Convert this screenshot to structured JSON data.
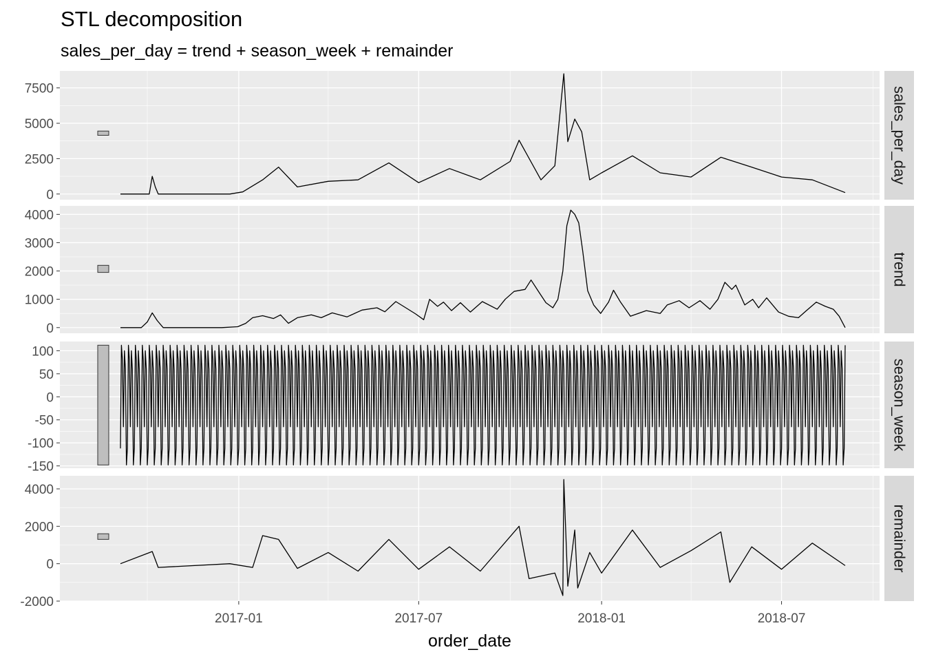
{
  "chart_data": {
    "type": "line",
    "title": "STL decomposition",
    "subtitle": "sales_per_day = trend + season_week + remainder",
    "xlabel": "order_date",
    "x_ticks": [
      "2017-01",
      "2017-07",
      "2018-01",
      "2018-07"
    ],
    "x_range": [
      "2016-09-04",
      "2018-09-03"
    ],
    "panels": [
      {
        "name": "sales_per_day",
        "ylim": [
          -400,
          8700
        ],
        "yticks": [
          0,
          2500,
          5000,
          7500
        ],
        "ytick_labels": [
          "0",
          "2500",
          "5000",
          "7500"
        ],
        "scale_bar": [
          4150,
          4450
        ],
        "series": [
          {
            "x": "2016-09-04",
            "y": 0
          },
          {
            "x": "2016-10-03",
            "y": 0
          },
          {
            "x": "2016-10-06",
            "y": 1250
          },
          {
            "x": "2016-10-09",
            "y": 500
          },
          {
            "x": "2016-10-12",
            "y": 0
          },
          {
            "x": "2016-12-23",
            "y": 0
          },
          {
            "x": "2017-01-05",
            "y": 150
          },
          {
            "x": "2017-01-25",
            "y": 1000
          },
          {
            "x": "2017-02-10",
            "y": 1900
          },
          {
            "x": "2017-03-01",
            "y": 500
          },
          {
            "x": "2017-04-01",
            "y": 900
          },
          {
            "x": "2017-05-01",
            "y": 1000
          },
          {
            "x": "2017-06-01",
            "y": 2200
          },
          {
            "x": "2017-07-01",
            "y": 800
          },
          {
            "x": "2017-08-01",
            "y": 1800
          },
          {
            "x": "2017-09-01",
            "y": 1000
          },
          {
            "x": "2017-10-01",
            "y": 2300
          },
          {
            "x": "2017-10-10",
            "y": 3800
          },
          {
            "x": "2017-11-01",
            "y": 1000
          },
          {
            "x": "2017-11-15",
            "y": 2000
          },
          {
            "x": "2017-11-24",
            "y": 8500
          },
          {
            "x": "2017-11-28",
            "y": 3700
          },
          {
            "x": "2017-12-05",
            "y": 5300
          },
          {
            "x": "2017-12-12",
            "y": 4400
          },
          {
            "x": "2017-12-20",
            "y": 1000
          },
          {
            "x": "2018-01-01",
            "y": 1500
          },
          {
            "x": "2018-02-01",
            "y": 2700
          },
          {
            "x": "2018-03-01",
            "y": 1500
          },
          {
            "x": "2018-04-01",
            "y": 1200
          },
          {
            "x": "2018-05-01",
            "y": 2600
          },
          {
            "x": "2018-06-01",
            "y": 1900
          },
          {
            "x": "2018-07-01",
            "y": 1200
          },
          {
            "x": "2018-08-01",
            "y": 1000
          },
          {
            "x": "2018-09-03",
            "y": 100
          }
        ]
      },
      {
        "name": "trend",
        "ylim": [
          -200,
          4300
        ],
        "yticks": [
          0,
          1000,
          2000,
          3000,
          4000
        ],
        "ytick_labels": [
          "0",
          "1000",
          "2000",
          "3000",
          "4000"
        ],
        "scale_bar": [
          1950,
          2200
        ],
        "series": [
          {
            "x": "2016-09-04",
            "y": 0
          },
          {
            "x": "2016-09-25",
            "y": 0
          },
          {
            "x": "2016-10-01",
            "y": 200
          },
          {
            "x": "2016-10-06",
            "y": 520
          },
          {
            "x": "2016-10-11",
            "y": 250
          },
          {
            "x": "2016-10-17",
            "y": 0
          },
          {
            "x": "2016-12-15",
            "y": 0
          },
          {
            "x": "2016-12-31",
            "y": 30
          },
          {
            "x": "2017-01-08",
            "y": 150
          },
          {
            "x": "2017-01-15",
            "y": 350
          },
          {
            "x": "2017-01-25",
            "y": 420
          },
          {
            "x": "2017-02-05",
            "y": 320
          },
          {
            "x": "2017-02-12",
            "y": 450
          },
          {
            "x": "2017-02-20",
            "y": 150
          },
          {
            "x": "2017-03-01",
            "y": 350
          },
          {
            "x": "2017-03-15",
            "y": 450
          },
          {
            "x": "2017-03-25",
            "y": 350
          },
          {
            "x": "2017-04-05",
            "y": 520
          },
          {
            "x": "2017-04-20",
            "y": 380
          },
          {
            "x": "2017-05-05",
            "y": 620
          },
          {
            "x": "2017-05-20",
            "y": 700
          },
          {
            "x": "2017-05-28",
            "y": 560
          },
          {
            "x": "2017-06-08",
            "y": 920
          },
          {
            "x": "2017-06-18",
            "y": 700
          },
          {
            "x": "2017-06-28",
            "y": 480
          },
          {
            "x": "2017-07-06",
            "y": 280
          },
          {
            "x": "2017-07-12",
            "y": 1000
          },
          {
            "x": "2017-07-20",
            "y": 750
          },
          {
            "x": "2017-07-26",
            "y": 900
          },
          {
            "x": "2017-08-03",
            "y": 600
          },
          {
            "x": "2017-08-12",
            "y": 880
          },
          {
            "x": "2017-08-22",
            "y": 550
          },
          {
            "x": "2017-09-03",
            "y": 920
          },
          {
            "x": "2017-09-18",
            "y": 650
          },
          {
            "x": "2017-09-26",
            "y": 1000
          },
          {
            "x": "2017-10-05",
            "y": 1280
          },
          {
            "x": "2017-10-16",
            "y": 1350
          },
          {
            "x": "2017-10-22",
            "y": 1680
          },
          {
            "x": "2017-10-30",
            "y": 1250
          },
          {
            "x": "2017-11-06",
            "y": 880
          },
          {
            "x": "2017-11-13",
            "y": 700
          },
          {
            "x": "2017-11-18",
            "y": 1000
          },
          {
            "x": "2017-11-23",
            "y": 2000
          },
          {
            "x": "2017-11-27",
            "y": 3600
          },
          {
            "x": "2017-12-01",
            "y": 4150
          },
          {
            "x": "2017-12-05",
            "y": 4000
          },
          {
            "x": "2017-12-09",
            "y": 3700
          },
          {
            "x": "2017-12-13",
            "y": 2700
          },
          {
            "x": "2017-12-18",
            "y": 1300
          },
          {
            "x": "2017-12-24",
            "y": 800
          },
          {
            "x": "2017-12-31",
            "y": 500
          },
          {
            "x": "2018-01-08",
            "y": 900
          },
          {
            "x": "2018-01-13",
            "y": 1320
          },
          {
            "x": "2018-01-20",
            "y": 900
          },
          {
            "x": "2018-01-30",
            "y": 400
          },
          {
            "x": "2018-02-15",
            "y": 600
          },
          {
            "x": "2018-03-01",
            "y": 500
          },
          {
            "x": "2018-03-08",
            "y": 800
          },
          {
            "x": "2018-03-20",
            "y": 950
          },
          {
            "x": "2018-03-30",
            "y": 700
          },
          {
            "x": "2018-04-10",
            "y": 950
          },
          {
            "x": "2018-04-20",
            "y": 650
          },
          {
            "x": "2018-04-28",
            "y": 1000
          },
          {
            "x": "2018-05-05",
            "y": 1600
          },
          {
            "x": "2018-05-12",
            "y": 1350
          },
          {
            "x": "2018-05-16",
            "y": 1500
          },
          {
            "x": "2018-05-25",
            "y": 800
          },
          {
            "x": "2018-06-02",
            "y": 1000
          },
          {
            "x": "2018-06-08",
            "y": 700
          },
          {
            "x": "2018-06-16",
            "y": 1050
          },
          {
            "x": "2018-06-28",
            "y": 550
          },
          {
            "x": "2018-07-08",
            "y": 400
          },
          {
            "x": "2018-07-18",
            "y": 350
          },
          {
            "x": "2018-07-26",
            "y": 600
          },
          {
            "x": "2018-08-05",
            "y": 900
          },
          {
            "x": "2018-08-14",
            "y": 750
          },
          {
            "x": "2018-08-22",
            "y": 650
          },
          {
            "x": "2018-08-28",
            "y": 400
          },
          {
            "x": "2018-09-03",
            "y": 0
          }
        ]
      },
      {
        "name": "season_week",
        "ylim": [
          -155,
          120
        ],
        "yticks": [
          -150,
          -100,
          -50,
          0,
          50,
          100
        ],
        "ytick_labels": [
          "-150",
          "-100",
          "-50",
          "0",
          "50",
          "100"
        ],
        "scale_bar": [
          -148,
          112
        ],
        "weekly_pattern": [
          -112,
          112,
          80,
          -65,
          100,
          60,
          -148
        ]
      },
      {
        "name": "remainder",
        "ylim": [
          -2000,
          4700
        ],
        "yticks": [
          -2000,
          0,
          2000,
          4000
        ],
        "ytick_labels": [
          "-2000",
          "0",
          "2000",
          "4000"
        ],
        "scale_bar": [
          1300,
          1600
        ],
        "series": [
          {
            "x": "2016-09-04",
            "y": 0
          },
          {
            "x": "2016-10-06",
            "y": 650
          },
          {
            "x": "2016-10-12",
            "y": -200
          },
          {
            "x": "2016-12-23",
            "y": 0
          },
          {
            "x": "2017-01-15",
            "y": -200
          },
          {
            "x": "2017-01-25",
            "y": 1500
          },
          {
            "x": "2017-02-10",
            "y": 1300
          },
          {
            "x": "2017-03-01",
            "y": -250
          },
          {
            "x": "2017-04-01",
            "y": 600
          },
          {
            "x": "2017-05-01",
            "y": -400
          },
          {
            "x": "2017-06-01",
            "y": 1300
          },
          {
            "x": "2017-07-01",
            "y": -300
          },
          {
            "x": "2017-08-01",
            "y": 900
          },
          {
            "x": "2017-09-01",
            "y": -400
          },
          {
            "x": "2017-10-10",
            "y": 2000
          },
          {
            "x": "2017-10-20",
            "y": -800
          },
          {
            "x": "2017-11-15",
            "y": -500
          },
          {
            "x": "2017-11-23",
            "y": -1700
          },
          {
            "x": "2017-11-24",
            "y": 4500
          },
          {
            "x": "2017-11-28",
            "y": -1200
          },
          {
            "x": "2017-12-05",
            "y": 1800
          },
          {
            "x": "2017-12-08",
            "y": -1300
          },
          {
            "x": "2017-12-20",
            "y": 600
          },
          {
            "x": "2018-01-01",
            "y": -500
          },
          {
            "x": "2018-02-01",
            "y": 1800
          },
          {
            "x": "2018-03-01",
            "y": -200
          },
          {
            "x": "2018-04-01",
            "y": 700
          },
          {
            "x": "2018-05-01",
            "y": 1700
          },
          {
            "x": "2018-05-10",
            "y": -1000
          },
          {
            "x": "2018-06-01",
            "y": 900
          },
          {
            "x": "2018-07-01",
            "y": -300
          },
          {
            "x": "2018-08-01",
            "y": 1100
          },
          {
            "x": "2018-09-03",
            "y": -100
          }
        ]
      }
    ],
    "colors": {
      "panel_bg": "#ebebeb",
      "grid_major": "#ffffff",
      "strip_bg": "#d9d9d9",
      "line": "#000000",
      "scale_bar_fill": "#bebebe",
      "tick_text": "#4d4d4d"
    }
  }
}
